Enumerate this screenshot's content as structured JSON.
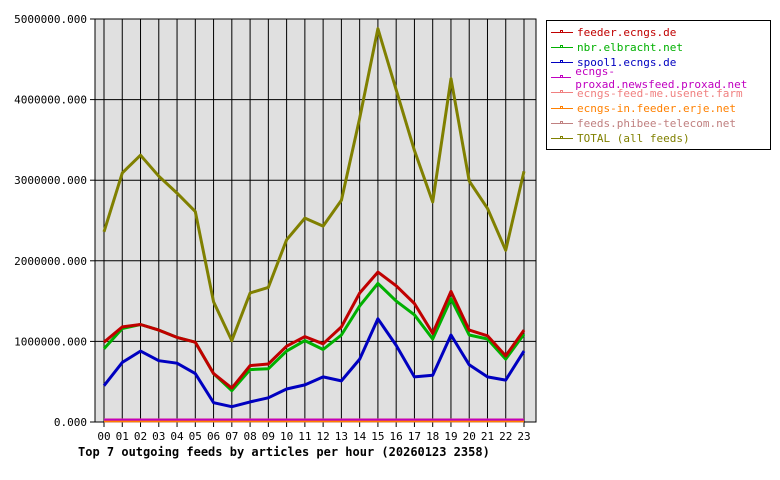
{
  "chart_data": {
    "type": "line",
    "title": "Top 7 outgoing feeds by articles per hour (20260123 2358)",
    "xlabel": "",
    "ylabel": "",
    "ylim": [
      0,
      5000000
    ],
    "grid": true,
    "legend_position": "right",
    "y_ticks": [
      "0.000",
      "1000000.000",
      "2000000.000",
      "3000000.000",
      "4000000.000",
      "5000000.000"
    ],
    "categories": [
      "00",
      "01",
      "02",
      "03",
      "04",
      "05",
      "06",
      "07",
      "08",
      "09",
      "10",
      "11",
      "12",
      "13",
      "14",
      "15",
      "16",
      "17",
      "18",
      "19",
      "20",
      "21",
      "22",
      "23"
    ],
    "series": [
      {
        "name": "feeder.ecngs.de",
        "color": "#c00000",
        "values": [
          990000,
          1180000,
          1210000,
          1140000,
          1050000,
          990000,
          600000,
          420000,
          700000,
          720000,
          940000,
          1060000,
          970000,
          1180000,
          1600000,
          1860000,
          1690000,
          1470000,
          1100000,
          1620000,
          1140000,
          1070000,
          820000,
          1140000
        ]
      },
      {
        "name": "nbr.elbracht.net",
        "color": "#00b000",
        "values": [
          910000,
          1160000,
          1210000,
          1140000,
          1050000,
          990000,
          600000,
          390000,
          650000,
          660000,
          880000,
          1010000,
          900000,
          1080000,
          1440000,
          1720000,
          1500000,
          1330000,
          1030000,
          1530000,
          1080000,
          1030000,
          780000,
          1090000
        ]
      },
      {
        "name": "spool1.ecngs.de",
        "color": "#0000c0",
        "values": [
          450000,
          740000,
          880000,
          760000,
          730000,
          600000,
          240000,
          190000,
          250000,
          300000,
          410000,
          460000,
          560000,
          510000,
          780000,
          1280000,
          950000,
          560000,
          580000,
          1080000,
          710000,
          560000,
          520000,
          880000
        ]
      },
      {
        "name": "ecngs-proxad.newsfeed.proxad.net",
        "color": "#c000c0",
        "values": [
          30000,
          30000,
          30000,
          30000,
          30000,
          30000,
          30000,
          30000,
          30000,
          30000,
          30000,
          30000,
          30000,
          30000,
          30000,
          30000,
          30000,
          30000,
          30000,
          30000,
          30000,
          30000,
          30000,
          30000
        ]
      },
      {
        "name": "ecngs-feed-me.usenet.farm",
        "color": "#f08080",
        "values": [
          20000,
          20000,
          20000,
          20000,
          20000,
          20000,
          20000,
          20000,
          20000,
          20000,
          20000,
          20000,
          20000,
          20000,
          20000,
          20000,
          20000,
          20000,
          20000,
          20000,
          20000,
          20000,
          20000,
          20000
        ]
      },
      {
        "name": "ecngs-in.feeder.erje.net",
        "color": "#ff8000",
        "values": [
          10000,
          10000,
          10000,
          10000,
          10000,
          10000,
          10000,
          10000,
          10000,
          10000,
          10000,
          10000,
          10000,
          10000,
          10000,
          10000,
          10000,
          10000,
          10000,
          10000,
          10000,
          10000,
          10000,
          10000
        ]
      },
      {
        "name": "feeds.phibee-telecom.net",
        "color": "#c08080",
        "values": [
          15000,
          15000,
          15000,
          15000,
          15000,
          15000,
          15000,
          15000,
          15000,
          15000,
          15000,
          15000,
          15000,
          15000,
          15000,
          15000,
          15000,
          15000,
          15000,
          15000,
          15000,
          15000,
          15000,
          15000
        ]
      },
      {
        "name": "TOTAL (all feeds)",
        "color": "#808000",
        "values": [
          2360000,
          3090000,
          3310000,
          3050000,
          2840000,
          2610000,
          1490000,
          1010000,
          1600000,
          1670000,
          2260000,
          2530000,
          2430000,
          2750000,
          3770000,
          4880000,
          4120000,
          3370000,
          2730000,
          4260000,
          2990000,
          2650000,
          2130000,
          3110000
        ]
      }
    ]
  },
  "legend": {
    "items": [
      {
        "label": "feeder.ecngs.de",
        "color": "#c00000"
      },
      {
        "label": "nbr.elbracht.net",
        "color": "#00b000"
      },
      {
        "label": "spool1.ecngs.de",
        "color": "#0000c0"
      },
      {
        "label": "ecngs-proxad.newsfeed.proxad.net",
        "color": "#c000c0"
      },
      {
        "label": "ecngs-feed-me.usenet.farm",
        "color": "#f08080"
      },
      {
        "label": "ecngs-in.feeder.erje.net",
        "color": "#ff8000"
      },
      {
        "label": "feeds.phibee-telecom.net",
        "color": "#c08080"
      },
      {
        "label": "TOTAL (all feeds)",
        "color": "#808000"
      }
    ]
  },
  "colors": {
    "plot_bg": "#e0e0e0",
    "grid": "#000000"
  }
}
